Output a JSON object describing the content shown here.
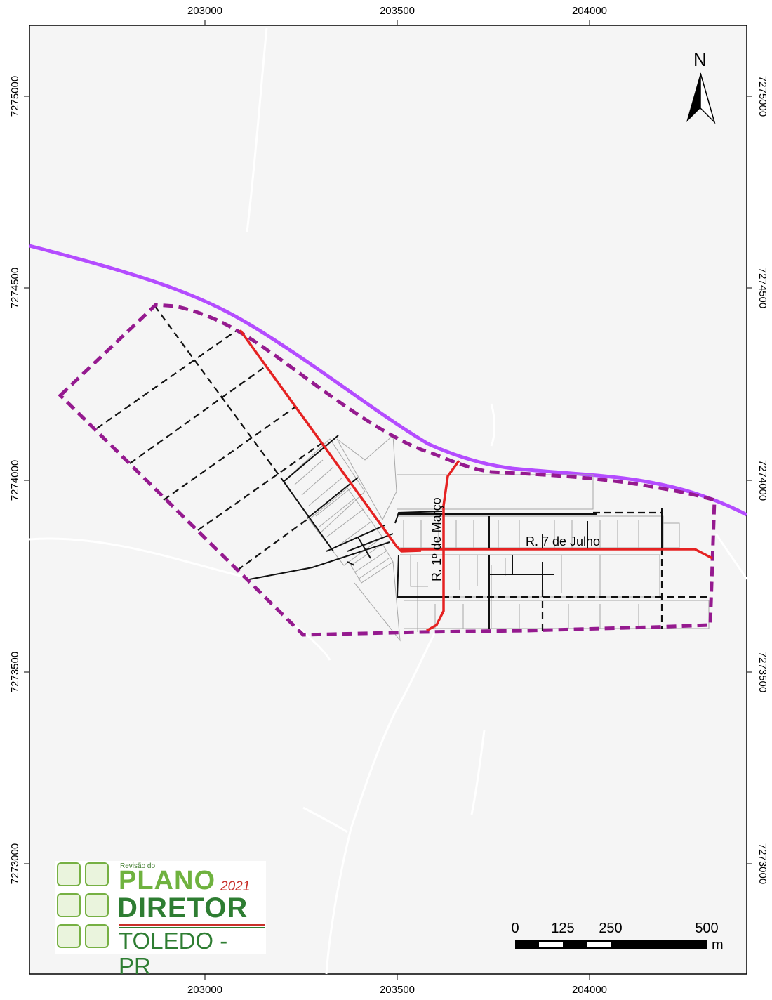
{
  "map": {
    "north_label": "N",
    "x_ticks": [
      "203000",
      "203500",
      "204000"
    ],
    "y_ticks": [
      "7275000",
      "7274500",
      "7274000",
      "7273500",
      "7273000"
    ],
    "street_labels": {
      "primeiro_de_marco": "R. 1º de Março",
      "sete_de_julho": "R. 7 de Julho"
    },
    "scale_bar": {
      "labels": [
        "0",
        "125",
        "250",
        "500"
      ],
      "unit": "m"
    },
    "colors": {
      "background": "#f5f5f5",
      "highway": "#b44cff",
      "perimeter": "#951a8f",
      "main_streets": "#e52222",
      "planned_streets": "#111111",
      "existing_streets": "#111111",
      "lots": "#a8a8a8",
      "rural_roads": "#ffffff"
    }
  },
  "logo": {
    "small_text": "Revisão do",
    "line1": "PLANO",
    "year": "2021",
    "line2": "DIRETOR",
    "city": "TOLEDO - PR"
  }
}
